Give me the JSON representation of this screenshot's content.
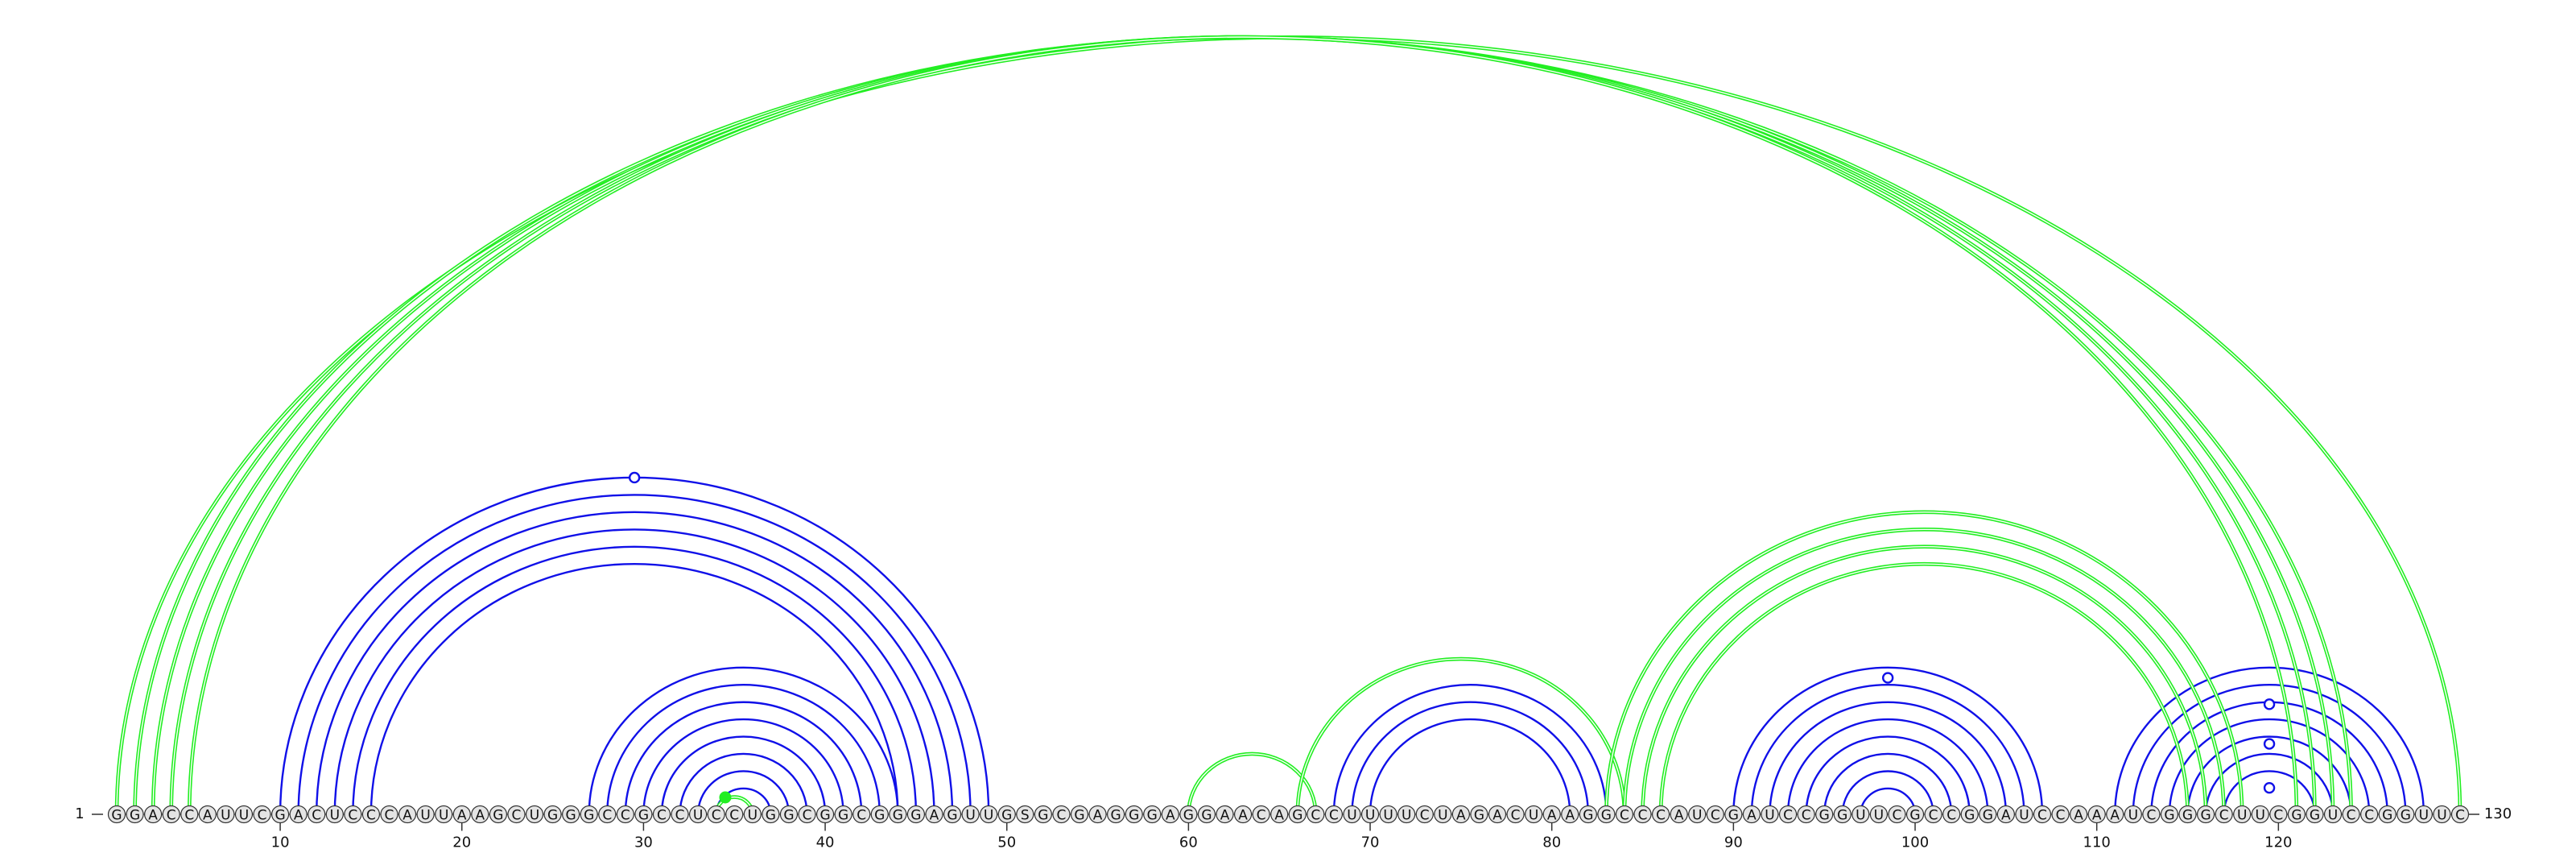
{
  "sequence": "GGACCAUUCGACUCCCAUUAAGCUGGGCCGCCUCCUGGCGGCGGGAGUUGSGCGAGGGAGGAACAGCCUUUUCUAGACUAAGGCCCAUCGAUCCGGUUCGCCGGAUCCAAAUCGGGCUUCGGUCCGGUUC",
  "start_label": "1",
  "end_label": "130",
  "tick_labels": [
    "10",
    "20",
    "30",
    "40",
    "50",
    "60",
    "70",
    "80",
    "90",
    "100",
    "110",
    "120"
  ],
  "tick_positions": [
    10,
    20,
    30,
    40,
    50,
    60,
    70,
    80,
    90,
    100,
    110,
    120
  ],
  "colors": {
    "blue": "#1010e8",
    "green": "#22ee22",
    "nucleotide_fill": "#e4e4e4",
    "nucleotide_stroke": "#333333",
    "text": "#111111"
  },
  "blue_pairs": [
    [
      10,
      49
    ],
    [
      11,
      48
    ],
    [
      12,
      47
    ],
    [
      13,
      46
    ],
    [
      14,
      45
    ],
    [
      15,
      44
    ],
    [
      27,
      44
    ],
    [
      28,
      43
    ],
    [
      29,
      42
    ],
    [
      30,
      41
    ],
    [
      31,
      40
    ],
    [
      32,
      39
    ],
    [
      33,
      38
    ],
    [
      34,
      37
    ],
    [
      68,
      83
    ],
    [
      69,
      82
    ],
    [
      70,
      81
    ],
    [
      90,
      107
    ],
    [
      91,
      106
    ],
    [
      92,
      105
    ],
    [
      93,
      104
    ],
    [
      94,
      103
    ],
    [
      95,
      102
    ],
    [
      96,
      101
    ],
    [
      97,
      100
    ],
    [
      111,
      128
    ],
    [
      112,
      127
    ],
    [
      113,
      126
    ],
    [
      114,
      125
    ],
    [
      115,
      124
    ],
    [
      116,
      123
    ],
    [
      117,
      122
    ]
  ],
  "green_pairs": [
    [
      1,
      130
    ],
    [
      2,
      124
    ],
    [
      3,
      123
    ],
    [
      4,
      122
    ],
    [
      5,
      121
    ],
    [
      34,
      36
    ],
    [
      60,
      67
    ],
    [
      66,
      84
    ],
    [
      83,
      118
    ],
    [
      84,
      117
    ],
    [
      85,
      116
    ],
    [
      86,
      115
    ]
  ],
  "blue_markers": [
    {
      "base": 29.5,
      "height_ratio": 1.0
    },
    {
      "base": 98.5,
      "height_ratio": 0.93
    },
    {
      "base": 119.5,
      "height_ratio": 0.75
    },
    {
      "base": 119.5,
      "height_ratio": 0.48
    },
    {
      "base": 119.5,
      "height_ratio": 0.18
    }
  ],
  "green_markers": [
    {
      "base": 34.5,
      "height_ratio": 0.98
    }
  ]
}
